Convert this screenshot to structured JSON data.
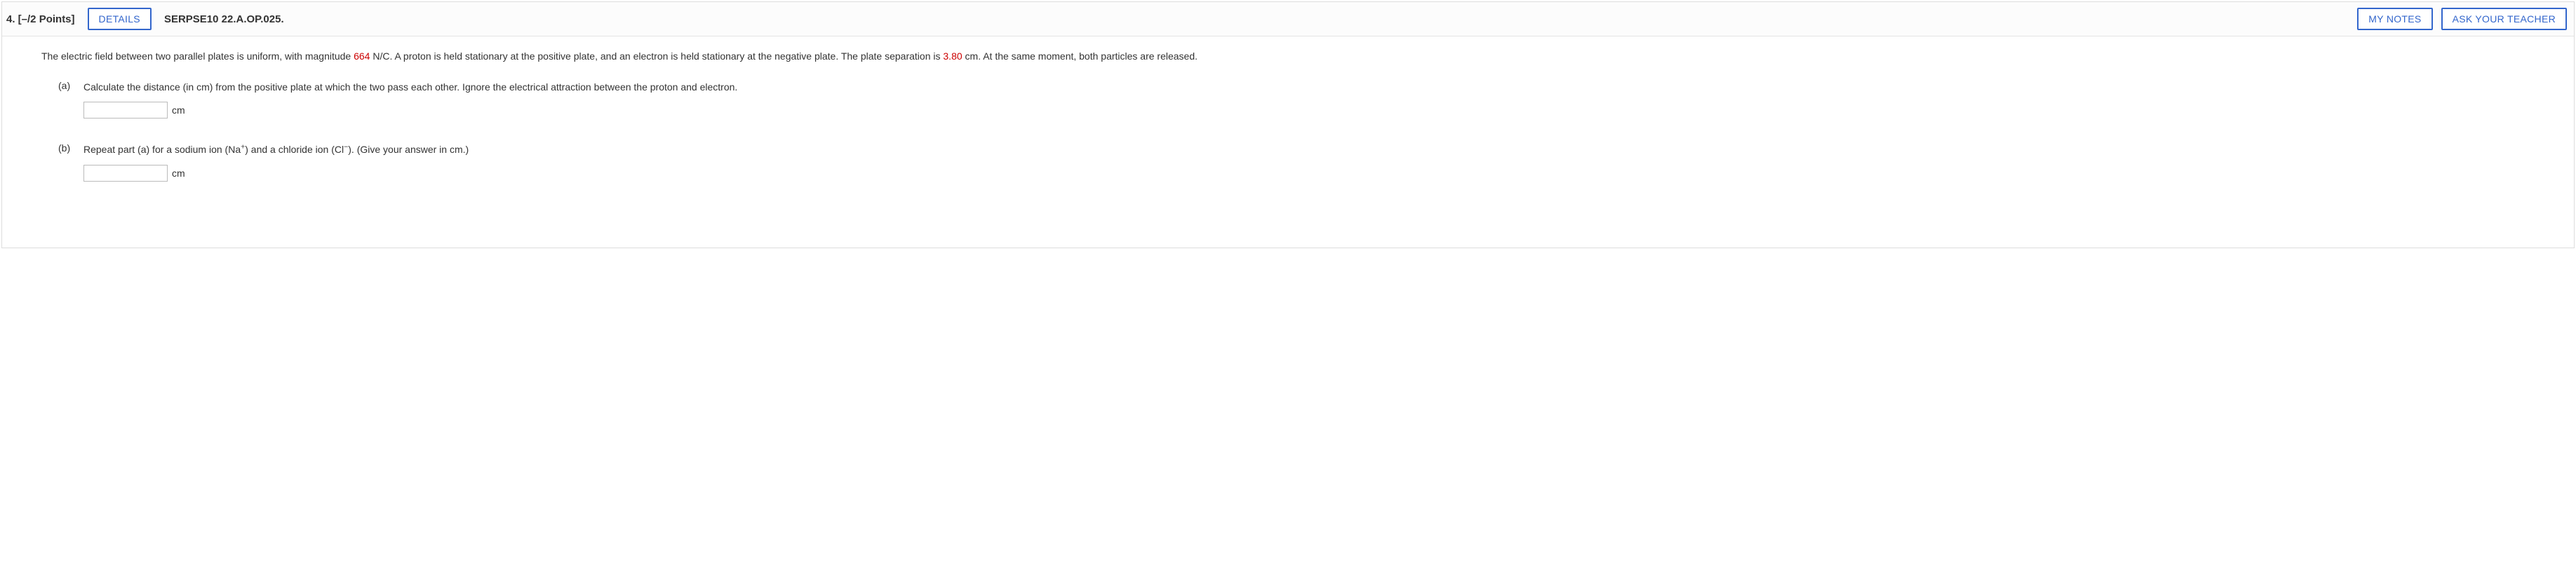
{
  "header": {
    "question_label": "4. [–/2 Points]",
    "details_btn": "DETAILS",
    "source_code": "SERPSE10 22.A.OP.025.",
    "my_notes_btn": "MY NOTES",
    "ask_teacher_btn": "ASK YOUR TEACHER"
  },
  "problem": {
    "intro_pre": "The electric field between two parallel plates is uniform, with magnitude ",
    "field_value": "664",
    "intro_mid": " N/C. A proton is held stationary at the positive plate, and an electron is held stationary at the negative plate. The plate separation is ",
    "separation_value": "3.80",
    "intro_post": " cm. At the same moment, both particles are released."
  },
  "parts": {
    "a": {
      "label": "(a)",
      "text": "Calculate the distance (in cm) from the positive plate at which the two pass each other. Ignore the electrical attraction between the proton and electron.",
      "unit": "cm",
      "value": ""
    },
    "b": {
      "label": "(b)",
      "text_pre": "Repeat part (a) for a sodium ion (Na",
      "sup1": "+",
      "text_mid": ") and a chloride ion (Cl",
      "sup2": "−",
      "text_post": "). (Give your answer in cm.)",
      "unit": "cm",
      "value": ""
    }
  },
  "colors": {
    "accent": "#3366cc",
    "highlight": "#cc0000",
    "border": "#dddddd",
    "text": "#333333"
  }
}
